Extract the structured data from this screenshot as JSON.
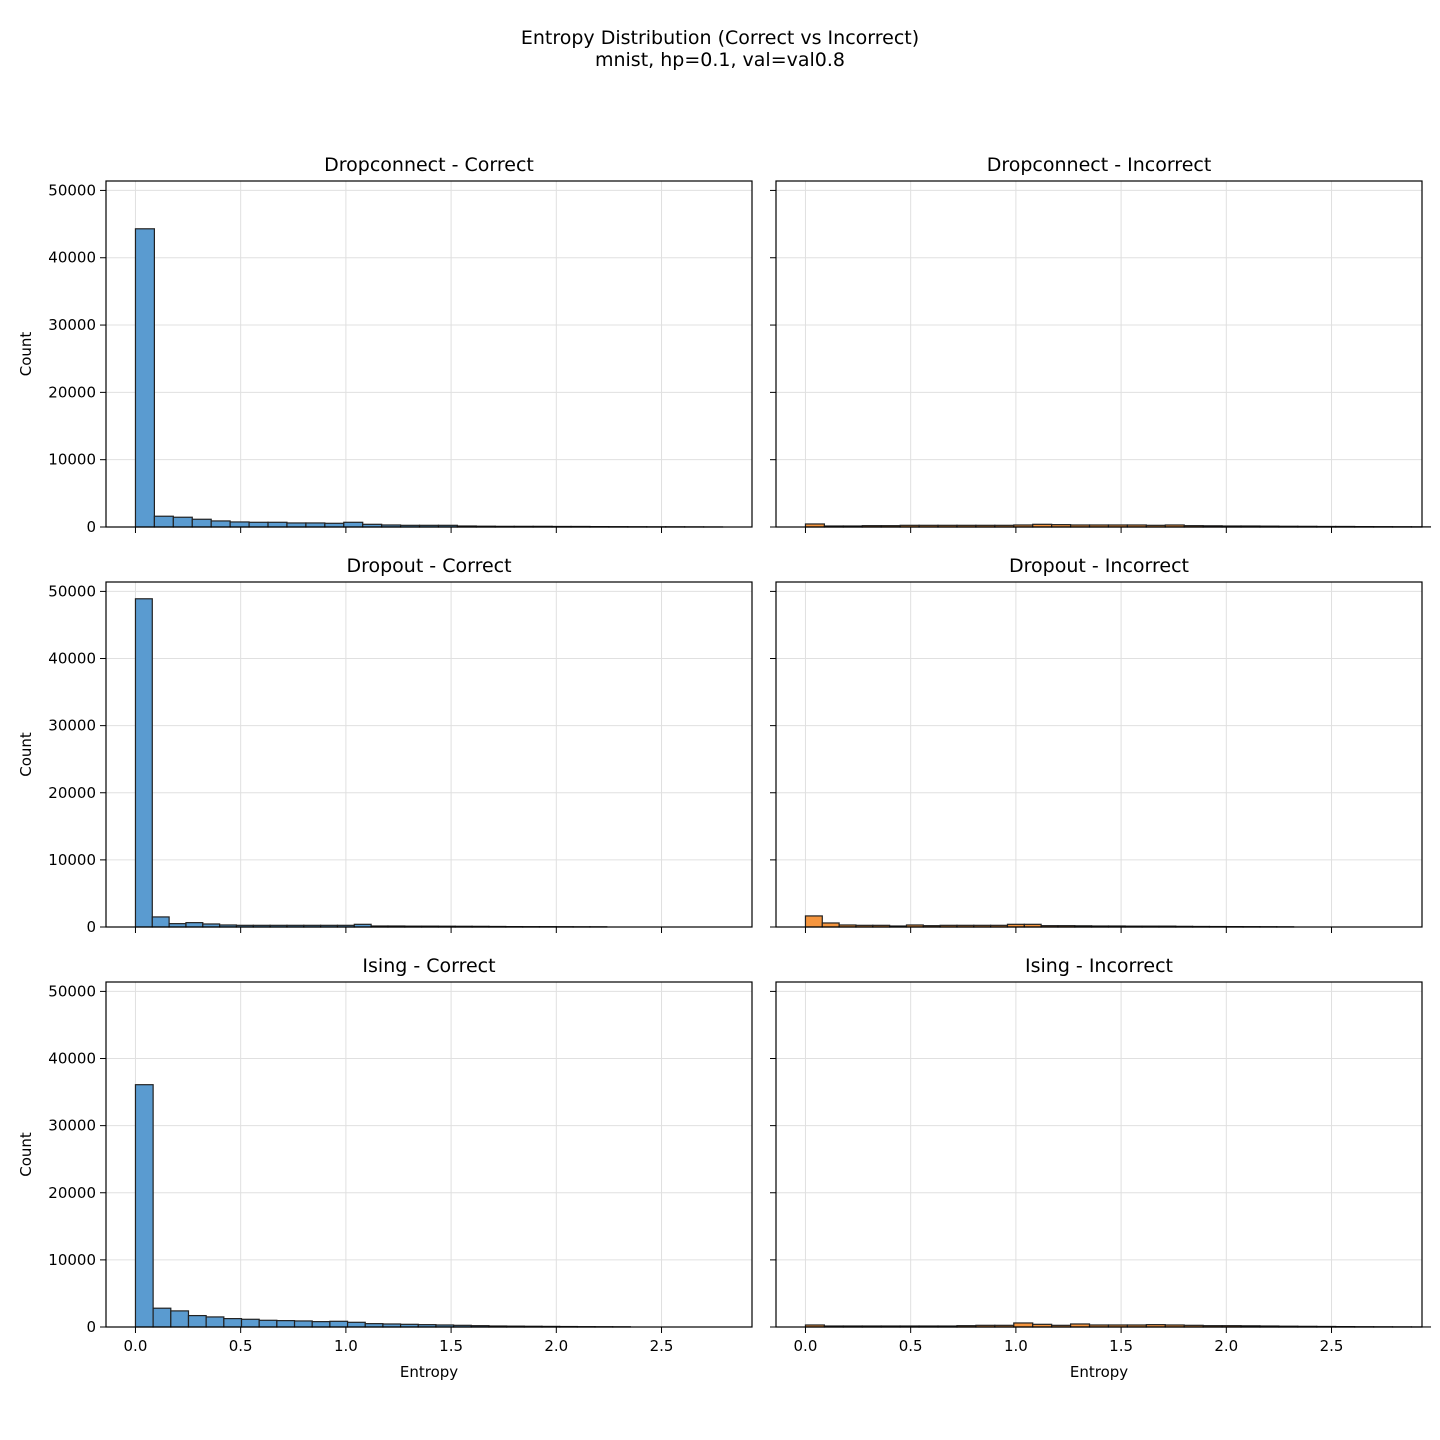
{
  "figure": {
    "title": "Entropy Distribution (Correct vs Incorrect)",
    "subtitle": "mnist, hp=0.1, val=val0.8"
  },
  "colors": {
    "correct": "#5a9bd0",
    "incorrect": "#f5953e",
    "edge": "#222222",
    "grid": "#e0e0e0"
  },
  "chart_data": [
    {
      "type": "bar",
      "title": "Dropconnect - Correct",
      "xlabel": "",
      "ylabel": "Count",
      "xlim": [
        -0.14,
        2.93
      ],
      "ylim": [
        0,
        51400
      ],
      "xticks": [
        "0.0",
        "0.5",
        "1.0",
        "1.5",
        "2.0",
        "2.5"
      ],
      "yticks": [
        "0",
        "10000",
        "20000",
        "30000",
        "40000",
        "50000"
      ],
      "grid": true,
      "series": [
        {
          "color": "incorrect_no",
          "bin_width": 0.09,
          "bin_start": 0.0,
          "values": [
            44300,
            1600,
            1450,
            1150,
            900,
            750,
            700,
            700,
            600,
            600,
            550,
            700,
            400,
            300,
            250,
            250,
            250,
            150,
            120,
            100,
            100,
            100,
            80,
            80,
            60,
            50,
            40,
            30,
            30,
            20,
            10
          ]
        }
      ]
    },
    {
      "type": "bar",
      "title": "Dropconnect - Incorrect",
      "xlabel": "",
      "ylabel": "",
      "xlim": [
        -0.14,
        2.93
      ],
      "ylim": [
        0,
        51400
      ],
      "xticks": [
        "0.0",
        "0.5",
        "1.0",
        "1.5",
        "2.0",
        "2.5"
      ],
      "yticks": [
        "0",
        "10000",
        "20000",
        "30000",
        "40000",
        "50000"
      ],
      "grid": true,
      "series": [
        {
          "bin_width": 0.09,
          "bin_start": 0.0,
          "values": [
            450,
            150,
            150,
            200,
            200,
            250,
            250,
            250,
            250,
            250,
            250,
            300,
            400,
            350,
            300,
            300,
            300,
            300,
            250,
            300,
            200,
            180,
            150,
            150,
            130,
            110,
            100,
            80,
            80,
            60,
            50,
            40,
            30
          ]
        }
      ]
    },
    {
      "type": "bar",
      "title": "Dropout - Correct",
      "xlabel": "",
      "ylabel": "Count",
      "xlim": [
        -0.14,
        2.93
      ],
      "ylim": [
        0,
        51400
      ],
      "xticks": [
        "0.0",
        "0.5",
        "1.0",
        "1.5",
        "2.0",
        "2.5"
      ],
      "yticks": [
        "0",
        "10000",
        "20000",
        "30000",
        "40000",
        "50000"
      ],
      "grid": true,
      "series": [
        {
          "bin_width": 0.08,
          "bin_start": 0.0,
          "values": [
            48900,
            1500,
            500,
            650,
            450,
            300,
            250,
            250,
            250,
            250,
            250,
            250,
            250,
            400,
            150,
            150,
            130,
            130,
            120,
            110,
            100,
            80,
            60,
            50,
            50,
            40,
            30,
            30
          ]
        }
      ]
    },
    {
      "type": "bar",
      "title": "Dropout - Incorrect",
      "xlabel": "",
      "ylabel": "",
      "xlim": [
        -0.14,
        2.93
      ],
      "ylim": [
        0,
        51400
      ],
      "xticks": [
        "0.0",
        "0.5",
        "1.0",
        "1.5",
        "2.0",
        "2.5"
      ],
      "yticks": [
        "0",
        "10000",
        "20000",
        "30000",
        "40000",
        "50000"
      ],
      "grid": true,
      "series": [
        {
          "bin_width": 0.08,
          "bin_start": 0.0,
          "values": [
            1650,
            600,
            300,
            250,
            250,
            150,
            300,
            200,
            250,
            250,
            250,
            250,
            400,
            400,
            200,
            200,
            180,
            150,
            150,
            130,
            130,
            130,
            100,
            80,
            70,
            60,
            50,
            40,
            30
          ]
        }
      ]
    },
    {
      "type": "bar",
      "title": "Ising - Correct",
      "xlabel": "Entropy",
      "ylabel": "Count",
      "xlim": [
        -0.14,
        2.93
      ],
      "ylim": [
        0,
        51400
      ],
      "xticks": [
        "0.0",
        "0.5",
        "1.0",
        "1.5",
        "2.0",
        "2.5"
      ],
      "yticks": [
        "0",
        "10000",
        "20000",
        "30000",
        "40000",
        "50000"
      ],
      "grid": true,
      "series": [
        {
          "bin_width": 0.084,
          "bin_start": 0.0,
          "values": [
            36100,
            2800,
            2400,
            1700,
            1500,
            1250,
            1150,
            1000,
            950,
            900,
            800,
            850,
            700,
            500,
            450,
            400,
            350,
            300,
            250,
            200,
            150,
            130,
            110,
            90,
            70,
            50,
            40,
            30
          ]
        }
      ]
    },
    {
      "type": "bar",
      "title": "Ising - Incorrect",
      "xlabel": "Entropy",
      "ylabel": "",
      "xlim": [
        -0.14,
        2.93
      ],
      "ylim": [
        0,
        51400
      ],
      "xticks": [
        "0.0",
        "0.5",
        "1.0",
        "1.5",
        "2.0",
        "2.5"
      ],
      "yticks": [
        "0",
        "10000",
        "20000",
        "30000",
        "40000",
        "50000"
      ],
      "grid": true,
      "series": [
        {
          "bin_width": 0.09,
          "bin_start": 0.0,
          "values": [
            300,
            150,
            150,
            150,
            150,
            150,
            150,
            150,
            200,
            250,
            250,
            600,
            400,
            250,
            450,
            300,
            300,
            300,
            350,
            300,
            250,
            200,
            200,
            180,
            150,
            120,
            100,
            80,
            60,
            40,
            30,
            20,
            10
          ]
        }
      ]
    }
  ]
}
